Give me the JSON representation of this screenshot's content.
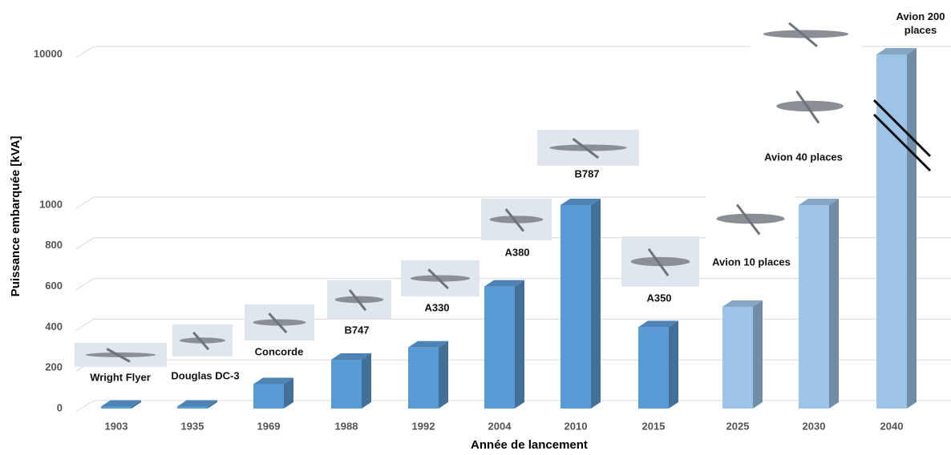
{
  "chart_data": {
    "type": "bar3d",
    "y_label": "Puissance embarquée [kVA]",
    "x_label": "Année de lancement",
    "categories": [
      "1903",
      "1935",
      "1969",
      "1988",
      "1992",
      "2004",
      "2010",
      "2015",
      "2025",
      "2030",
      "2040"
    ],
    "values": [
      10,
      10,
      120,
      240,
      300,
      600,
      1000,
      400,
      500,
      1000,
      10000
    ],
    "colors": [
      "#5b9bd5",
      "#5b9bd5",
      "#5b9bd5",
      "#5b9bd5",
      "#5b9bd5",
      "#5b9bd5",
      "#5b9bd5",
      "#5b9bd5",
      "#9dc3e6",
      "#9dc3e6",
      "#9dc3e6"
    ],
    "annotations": [
      "Wright Flyer",
      "Douglas DC-3",
      "Concorde",
      "B747",
      "A330",
      "A380",
      "B787",
      "A350",
      "Avion 10 places",
      "Avion 40 places",
      "Avion 200 places"
    ],
    "ylim": [
      0,
      10000
    ],
    "yticks": [
      0,
      200,
      400,
      600,
      800,
      1000,
      10000
    ],
    "axis_break": true,
    "grid": true
  }
}
